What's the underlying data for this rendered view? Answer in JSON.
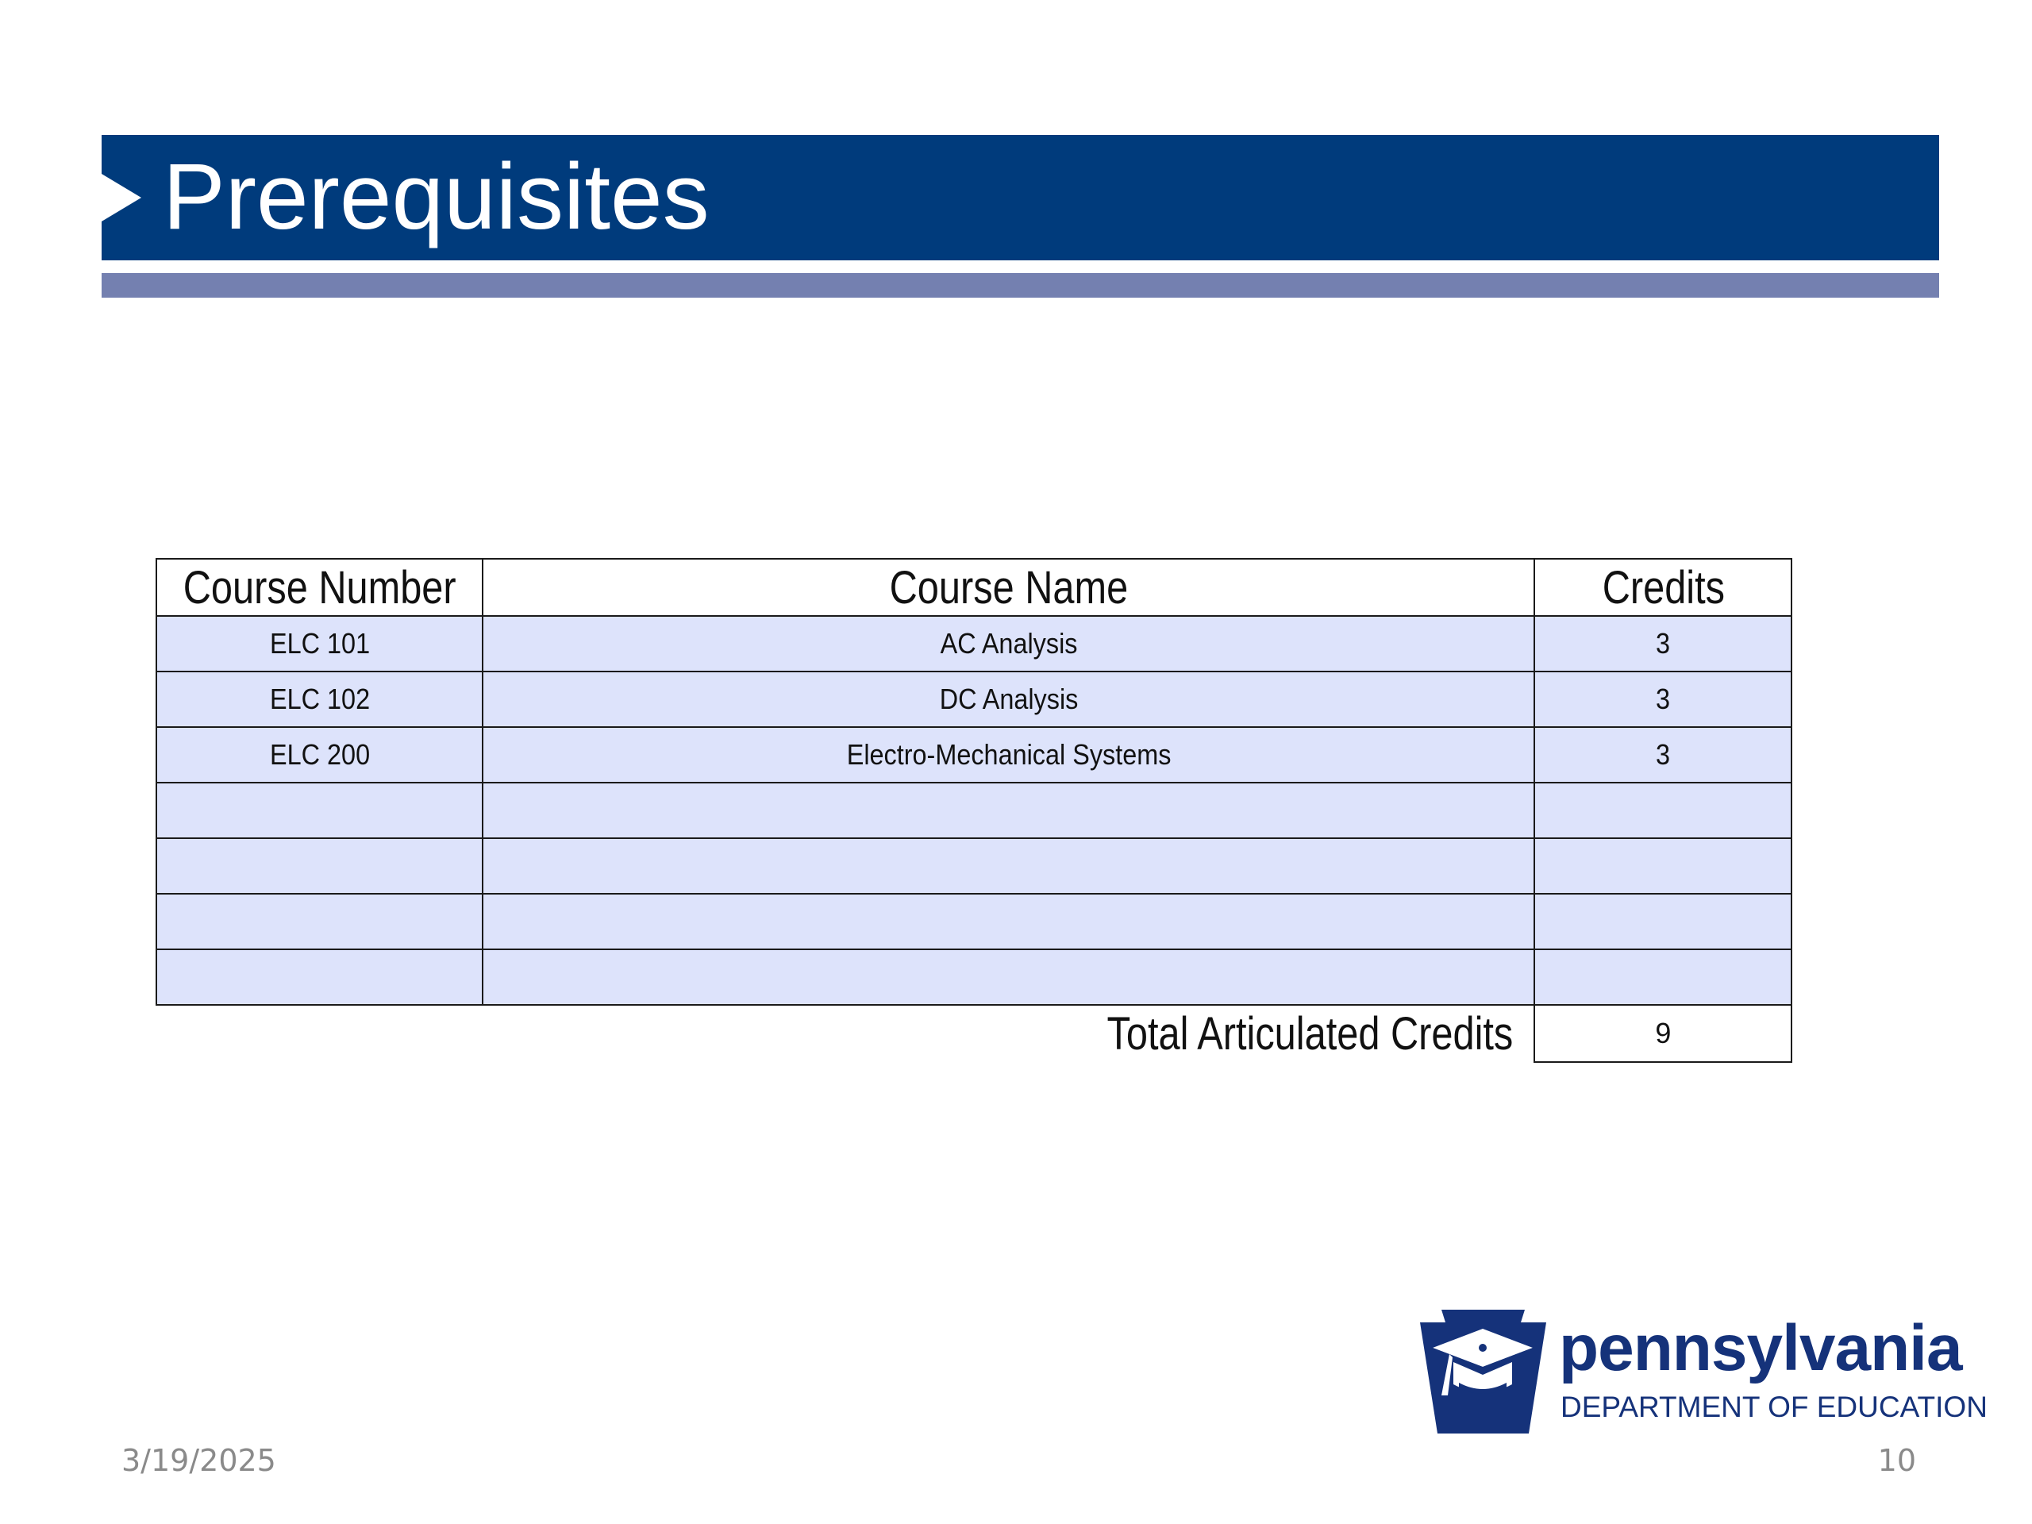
{
  "slide": {
    "title": "Prerequisites",
    "date": "3/19/2025",
    "page_number": "10"
  },
  "table": {
    "headers": {
      "course_number": "Course Number",
      "course_name": "Course Name",
      "credits": "Credits"
    },
    "rows": [
      {
        "course_number": "ELC 101",
        "course_name": "AC Analysis",
        "credits": "3"
      },
      {
        "course_number": "ELC 102",
        "course_name": "DC Analysis",
        "credits": "3"
      },
      {
        "course_number": "ELC 200",
        "course_name": "Electro-Mechanical Systems",
        "credits": "3"
      },
      {
        "course_number": "",
        "course_name": "",
        "credits": ""
      },
      {
        "course_number": "",
        "course_name": "",
        "credits": ""
      },
      {
        "course_number": "",
        "course_name": "",
        "credits": ""
      },
      {
        "course_number": "",
        "course_name": "",
        "credits": ""
      }
    ],
    "total_label": "Total Articulated Credits",
    "total_value": "9"
  },
  "logo": {
    "wordmark": "pennsylvania",
    "subtitle": "DEPARTMENT OF EDUCATION"
  },
  "colors": {
    "title_bar": "#003b7c",
    "accent_bar": "#7480b0",
    "row_fill": "#dde3fb",
    "logo_blue": "#15327a"
  }
}
